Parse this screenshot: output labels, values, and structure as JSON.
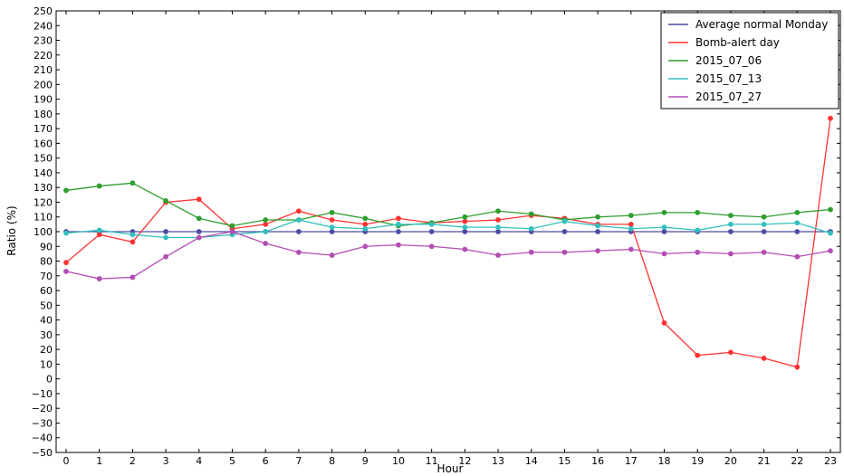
{
  "chart_data": {
    "type": "line",
    "xlabel": "Hour",
    "ylabel": "Ratio (%)",
    "xlim": [
      -0.3,
      23.3
    ],
    "ylim": [
      -50,
      250
    ],
    "x_ticks": [
      0,
      1,
      2,
      3,
      4,
      5,
      6,
      7,
      8,
      9,
      10,
      11,
      12,
      13,
      14,
      15,
      16,
      17,
      18,
      19,
      20,
      21,
      22,
      23
    ],
    "y_ticks": [
      -50,
      -40,
      -30,
      -20,
      -10,
      0,
      10,
      20,
      30,
      40,
      50,
      60,
      70,
      80,
      90,
      100,
      110,
      120,
      130,
      140,
      150,
      160,
      170,
      180,
      190,
      200,
      210,
      220,
      230,
      240,
      250
    ],
    "legend_position": "top-right",
    "grid": false,
    "series": [
      {
        "name": "Average normal Monday",
        "color": "#4c4ca3",
        "values": [
          100,
          100,
          100,
          100,
          100,
          100,
          100,
          100,
          100,
          100,
          100,
          100,
          100,
          100,
          100,
          100,
          100,
          100,
          100,
          100,
          100,
          100,
          100,
          100
        ]
      },
      {
        "name": "Bomb-alert day",
        "color": "#ff3333",
        "values": [
          79,
          98,
          93,
          120,
          122,
          102,
          105,
          114,
          108,
          105,
          109,
          106,
          107,
          108,
          111,
          109,
          105,
          105,
          38,
          16,
          18,
          14,
          8,
          177
        ]
      },
      {
        "name": "2015_07_06",
        "color": "#2e9e2e",
        "values": [
          128,
          131,
          133,
          121,
          109,
          104,
          108,
          108,
          113,
          109,
          104,
          106,
          110,
          114,
          112,
          108,
          110,
          111,
          113,
          113,
          111,
          110,
          113,
          115
        ]
      },
      {
        "name": "2015_07_13",
        "color": "#33bfbf",
        "values": [
          99,
          101,
          98,
          96,
          96,
          98,
          100,
          108,
          103,
          102,
          105,
          105,
          103,
          103,
          102,
          107,
          104,
          102,
          103,
          101,
          105,
          105,
          106,
          99
        ]
      },
      {
        "name": "2015_07_27",
        "color": "#b34db3",
        "values": [
          73,
          68,
          69,
          83,
          96,
          100,
          92,
          86,
          84,
          90,
          91,
          90,
          88,
          84,
          86,
          86,
          87,
          88,
          85,
          86,
          85,
          86,
          83,
          87
        ]
      }
    ]
  }
}
